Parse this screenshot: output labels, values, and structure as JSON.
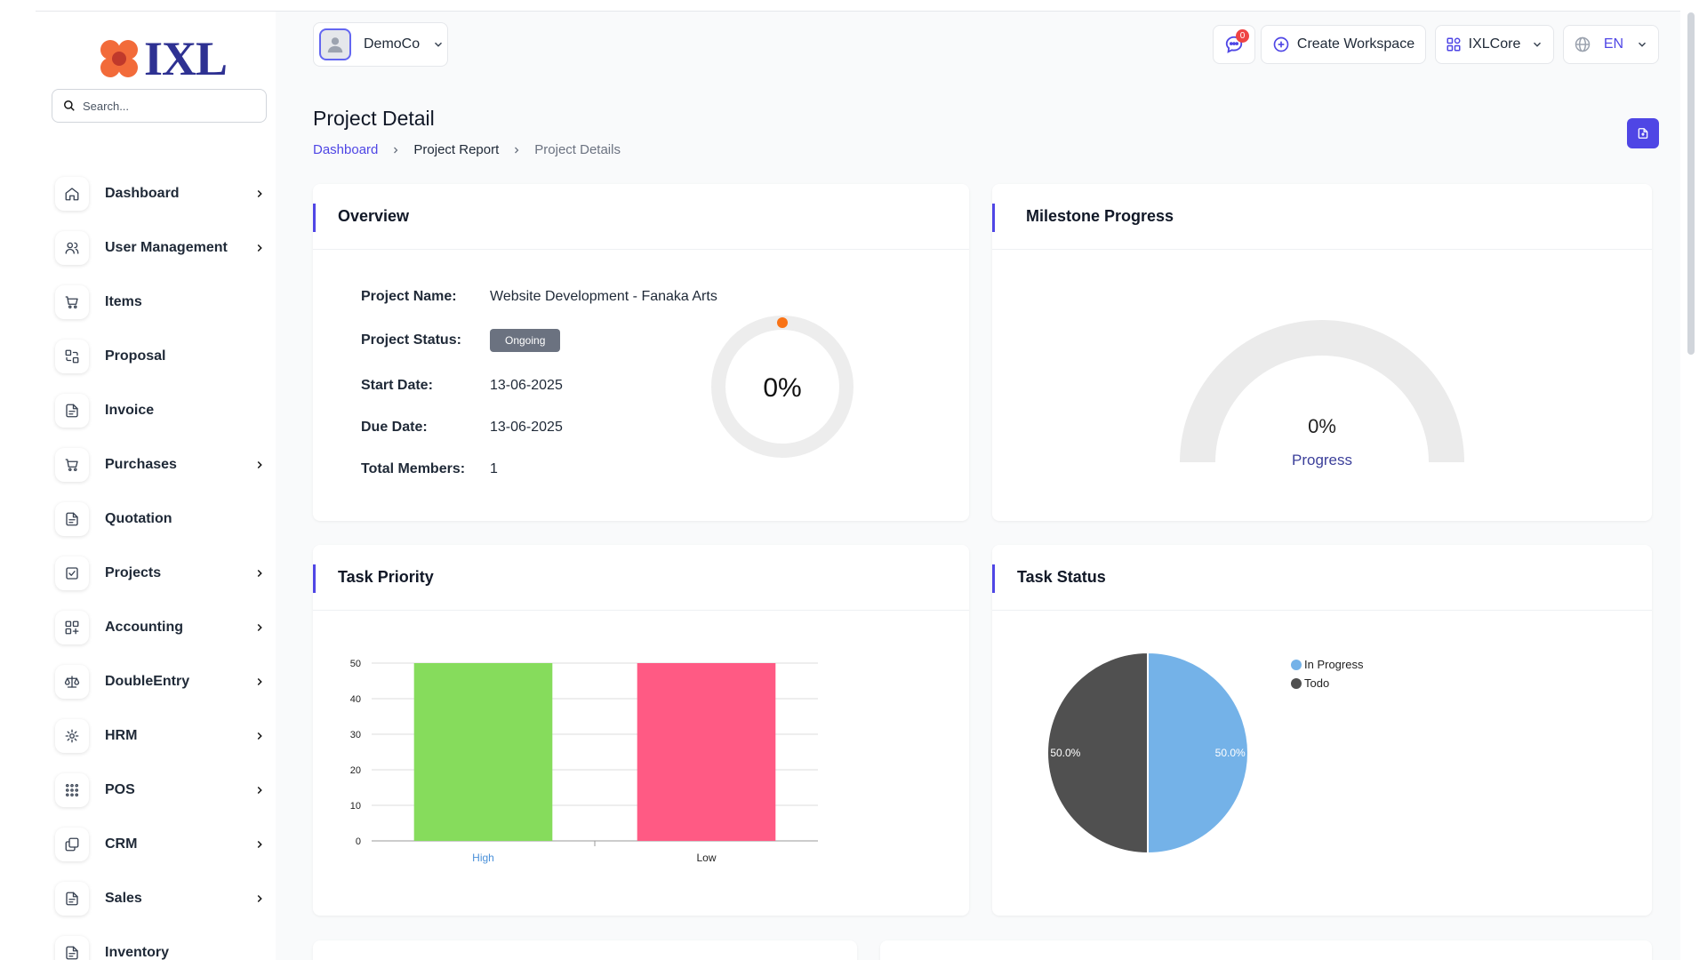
{
  "logo": {
    "text": "IXL"
  },
  "search": {
    "placeholder": "Search..."
  },
  "sidebar": {
    "items": [
      {
        "label": "Dashboard",
        "icon": "home-icon",
        "has_children": true
      },
      {
        "label": "User Management",
        "icon": "users-icon",
        "has_children": true
      },
      {
        "label": "Items",
        "icon": "cart-icon",
        "has_children": false
      },
      {
        "label": "Proposal",
        "icon": "swap-icon",
        "has_children": false
      },
      {
        "label": "Invoice",
        "icon": "document-icon",
        "has_children": false
      },
      {
        "label": "Purchases",
        "icon": "cart-icon",
        "has_children": true
      },
      {
        "label": "Quotation",
        "icon": "document-icon",
        "has_children": false
      },
      {
        "label": "Projects",
        "icon": "checkbox-icon",
        "has_children": true
      },
      {
        "label": "Accounting",
        "icon": "grid-plus-icon",
        "has_children": true
      },
      {
        "label": "DoubleEntry",
        "icon": "scale-icon",
        "has_children": true
      },
      {
        "label": "HRM",
        "icon": "hrm-icon",
        "has_children": true
      },
      {
        "label": "POS",
        "icon": "dots-grid-icon",
        "has_children": true
      },
      {
        "label": "CRM",
        "icon": "layers-icon",
        "has_children": true
      },
      {
        "label": "Sales",
        "icon": "document-icon",
        "has_children": true
      },
      {
        "label": "Inventory",
        "icon": "document-icon",
        "has_children": false
      }
    ]
  },
  "topbar": {
    "workspace": "DemoCo",
    "notifications_count": "0",
    "create_workspace": "Create Workspace",
    "app_switcher": "IXLCore",
    "language": "EN"
  },
  "header": {
    "title": "Project Detail",
    "breadcrumb": [
      "Dashboard",
      "Project Report",
      "Project Details"
    ]
  },
  "overview": {
    "title": "Overview",
    "rows": [
      {
        "label": "Project Name:",
        "value": "Website Development - Fanaka Arts"
      },
      {
        "label": "Project Status:",
        "value": "Ongoing"
      },
      {
        "label": "Start Date:",
        "value": "13-06-2025"
      },
      {
        "label": "Due Date:",
        "value": "13-06-2025"
      },
      {
        "label": "Total Members:",
        "value": "1"
      }
    ],
    "progress_text": "0%",
    "progress_value": 0,
    "progress_color": "#f97316"
  },
  "milestone": {
    "title": "Milestone Progress",
    "value_text": "0%",
    "label": "Progress",
    "value": 0
  },
  "task_priority": {
    "title": "Task Priority"
  },
  "task_status": {
    "title": "Task Status"
  },
  "chart_data": [
    {
      "type": "bar",
      "categories": [
        "High",
        "Low"
      ],
      "values": [
        50,
        50
      ],
      "colors": [
        "#86dc5c",
        "#ff5a84"
      ],
      "yticks": [
        0,
        10,
        20,
        30,
        40,
        50
      ],
      "ylim": [
        0,
        50
      ],
      "grid": true
    },
    {
      "type": "pie",
      "labels": [
        "In Progress",
        "Todo"
      ],
      "values": [
        50.0,
        50.0
      ],
      "value_labels": [
        "50.0%",
        "50.0%"
      ],
      "colors": [
        "#74b2e8",
        "#505050"
      ],
      "legend": "top-right"
    }
  ],
  "colors": {
    "accent": "#4f46e5",
    "logo_petals": "#f26b3a",
    "logo_text": "#2e3192"
  }
}
